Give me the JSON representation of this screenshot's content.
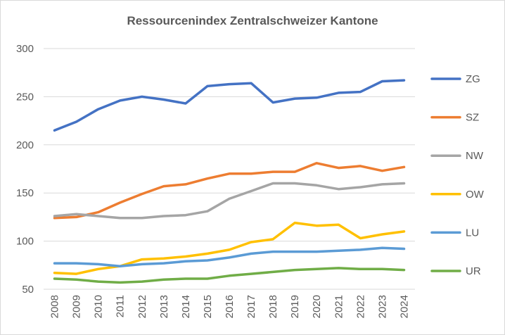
{
  "chart_data": {
    "type": "line",
    "title": "Ressourcenindex Zentralschweizer Kantone",
    "xlabel": "",
    "ylabel": "",
    "ylim": [
      50,
      300
    ],
    "yticks": [
      50,
      100,
      150,
      200,
      250,
      300
    ],
    "grid": true,
    "legend_position": "right",
    "categories": [
      "2008",
      "2009",
      "2010",
      "2011",
      "2012",
      "2013",
      "2014",
      "2015",
      "2016",
      "2017",
      "2018",
      "2019",
      "2020",
      "2021",
      "2022",
      "2023",
      "2024"
    ],
    "series": [
      {
        "name": "ZG",
        "color": "#4472C4",
        "values": [
          215,
          224,
          237,
          246,
          250,
          247,
          243,
          261,
          263,
          264,
          244,
          248,
          249,
          254,
          255,
          266,
          267
        ]
      },
      {
        "name": "SZ",
        "color": "#ED7D31",
        "values": [
          124,
          125,
          130,
          140,
          149,
          157,
          159,
          165,
          170,
          170,
          172,
          172,
          181,
          176,
          178,
          173,
          177
        ]
      },
      {
        "name": "NW",
        "color": "#A5A5A5",
        "values": [
          126,
          128,
          126,
          124,
          124,
          126,
          127,
          131,
          144,
          152,
          160,
          160,
          158,
          154,
          156,
          159,
          160
        ]
      },
      {
        "name": "OW",
        "color": "#FFC000",
        "values": [
          67,
          66,
          71,
          74,
          81,
          82,
          84,
          87,
          91,
          99,
          102,
          119,
          116,
          117,
          103,
          107,
          110
        ]
      },
      {
        "name": "LU",
        "color": "#5B9BD5",
        "values": [
          77,
          77,
          76,
          74,
          76,
          77,
          79,
          80,
          83,
          87,
          89,
          89,
          89,
          90,
          91,
          93,
          92
        ]
      },
      {
        "name": "UR",
        "color": "#70AD47",
        "values": [
          61,
          60,
          58,
          57,
          58,
          60,
          61,
          61,
          64,
          66,
          68,
          70,
          71,
          72,
          71,
          71,
          70
        ]
      }
    ]
  }
}
